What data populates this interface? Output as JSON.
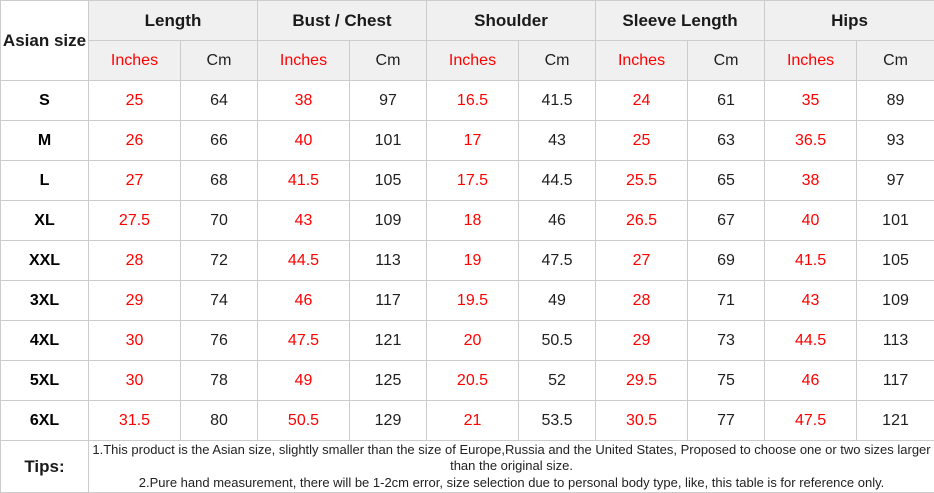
{
  "colors": {
    "accent_red": "#ff0000",
    "text_black": "#1f1f1f",
    "header_bg": "#f0f0f0",
    "border": "#cccccc"
  },
  "size_chart": {
    "corner_header": "Asian size",
    "measurement_groups": [
      "Length",
      "Bust / Chest",
      "Shoulder",
      "Sleeve Length",
      "Hips"
    ],
    "unit_headers": {
      "inches": "Inches",
      "cm": "Cm"
    },
    "rows": [
      {
        "size": "S",
        "values": [
          "25",
          "64",
          "38",
          "97",
          "16.5",
          "41.5",
          "24",
          "61",
          "35",
          "89"
        ]
      },
      {
        "size": "M",
        "values": [
          "26",
          "66",
          "40",
          "101",
          "17",
          "43",
          "25",
          "63",
          "36.5",
          "93"
        ]
      },
      {
        "size": "L",
        "values": [
          "27",
          "68",
          "41.5",
          "105",
          "17.5",
          "44.5",
          "25.5",
          "65",
          "38",
          "97"
        ]
      },
      {
        "size": "XL",
        "values": [
          "27.5",
          "70",
          "43",
          "109",
          "18",
          "46",
          "26.5",
          "67",
          "40",
          "101"
        ]
      },
      {
        "size": "XXL",
        "values": [
          "28",
          "72",
          "44.5",
          "113",
          "19",
          "47.5",
          "27",
          "69",
          "41.5",
          "105"
        ]
      },
      {
        "size": "3XL",
        "values": [
          "29",
          "74",
          "46",
          "117",
          "19.5",
          "49",
          "28",
          "71",
          "43",
          "109"
        ]
      },
      {
        "size": "4XL",
        "values": [
          "30",
          "76",
          "47.5",
          "121",
          "20",
          "50.5",
          "29",
          "73",
          "44.5",
          "113"
        ]
      },
      {
        "size": "5XL",
        "values": [
          "30",
          "78",
          "49",
          "125",
          "20.5",
          "52",
          "29.5",
          "75",
          "46",
          "117"
        ]
      },
      {
        "size": "6XL",
        "values": [
          "31.5",
          "80",
          "50.5",
          "129",
          "21",
          "53.5",
          "30.5",
          "77",
          "47.5",
          "121"
        ]
      }
    ],
    "tips": {
      "label": "Tips:",
      "notes": [
        "1.This product is the Asian size, slightly smaller than the size of Europe,Russia and the United States, Proposed to choose one or two sizes larger than the original size.",
        "2.Pure hand measurement, there will be 1-2cm error, size selection due to personal body type, like, this table is for reference only."
      ]
    }
  }
}
